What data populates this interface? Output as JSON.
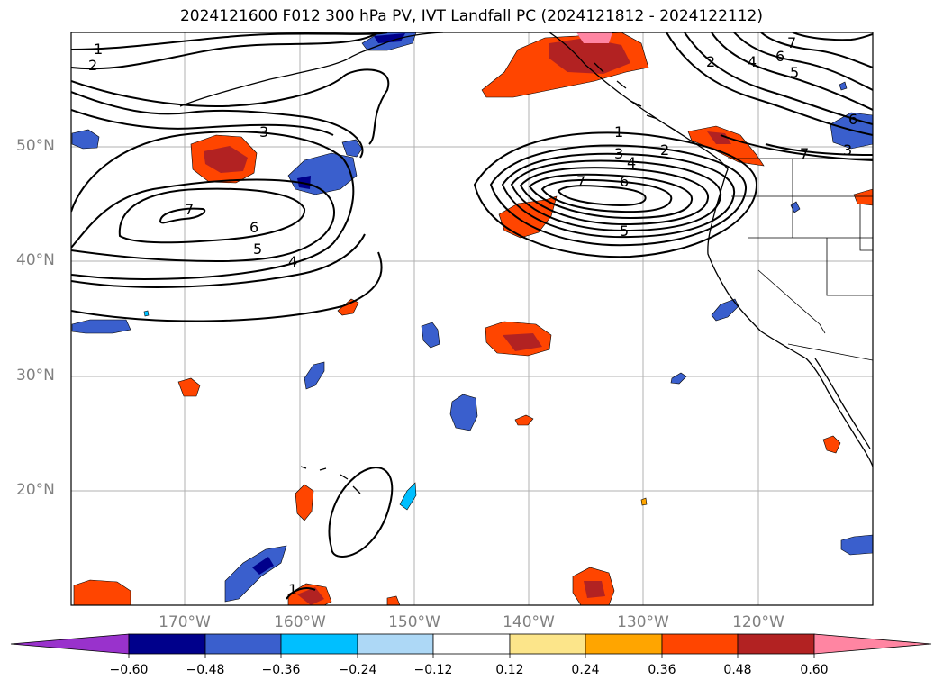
{
  "title": "2024121600 F012 300 hPa PV, IVT Landfall PC (2024121812 - 2024122112)",
  "lat_labels": [
    "50°N",
    "40°N",
    "30°N",
    "20°N"
  ],
  "lon_labels": [
    "170°W",
    "160°W",
    "150°W",
    "140°W",
    "130°W",
    "120°W"
  ],
  "colorbar": {
    "ticks": [
      "−0.60",
      "−0.48",
      "−0.36",
      "−0.24",
      "−0.12",
      "0.12",
      "0.24",
      "0.36",
      "0.48",
      "0.60"
    ],
    "colors": [
      "#9932cc",
      "#00008b",
      "#3a5fcd",
      "#00bfff",
      "#add8f6",
      "#ffffff",
      "#fce58a",
      "#ffa500",
      "#ff4500",
      "#b22222",
      "#ff85a2"
    ]
  },
  "contour_labels": {
    "west": [
      "1",
      "2",
      "3",
      "7",
      "6",
      "5",
      "4"
    ],
    "east": [
      "1",
      "3",
      "4",
      "2",
      "7",
      "6",
      "5"
    ],
    "northeast": [
      "7",
      "6",
      "5",
      "4",
      "2",
      "6",
      "3",
      "7"
    ],
    "south": [
      "1"
    ]
  }
}
